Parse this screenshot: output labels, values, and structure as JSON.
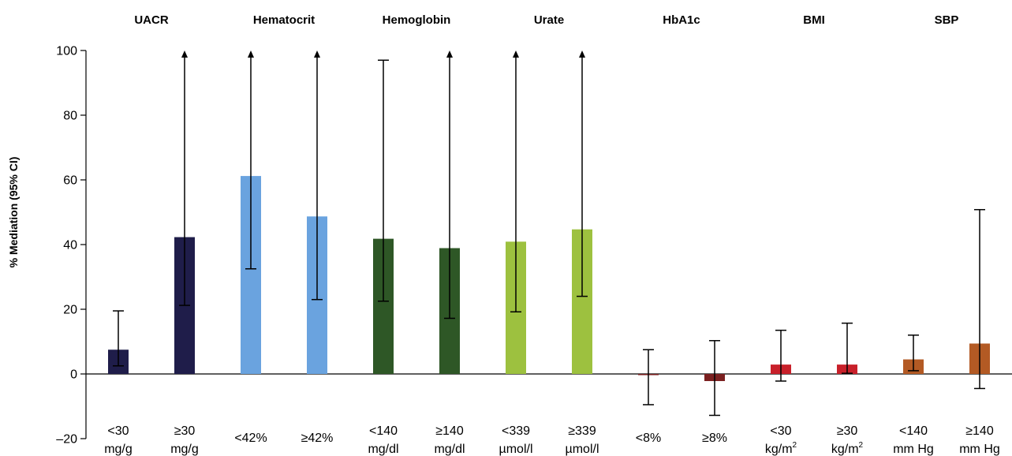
{
  "chart_data": {
    "type": "bar",
    "ylabel": "% Mediation (95% CI)",
    "ylim": [
      -20,
      100
    ],
    "yticks": [
      "100",
      "80",
      "60",
      "40",
      "20",
      "0",
      "–20"
    ],
    "grid": false,
    "groups": [
      {
        "name": "UACR",
        "bars": [
          {
            "label": [
              "<30",
              "mg/g"
            ],
            "value": 7.5,
            "ci_low": 2.5,
            "ci_high": 19.5,
            "ci_high_open": false,
            "color": "#1f1d4a"
          },
          {
            "label": [
              "≥30",
              "mg/g"
            ],
            "value": 42.3,
            "ci_low": 21.2,
            "ci_high": 100,
            "ci_high_open": true,
            "color": "#1f1d4a"
          }
        ]
      },
      {
        "name": "Hematocrit",
        "bars": [
          {
            "label": [
              "<42%"
            ],
            "value": 61.2,
            "ci_low": 32.5,
            "ci_high": 100,
            "ci_high_open": true,
            "color": "#6aa3df"
          },
          {
            "label": [
              "≥42%"
            ],
            "value": 48.7,
            "ci_low": 23.0,
            "ci_high": 100,
            "ci_high_open": true,
            "color": "#6aa3df"
          }
        ]
      },
      {
        "name": "Hemoglobin",
        "bars": [
          {
            "label": [
              "<140",
              "mg/dl"
            ],
            "value": 41.8,
            "ci_low": 22.5,
            "ci_high": 97.0,
            "ci_high_open": false,
            "color": "#2e5726"
          },
          {
            "label": [
              "≥140",
              "mg/dl"
            ],
            "value": 38.9,
            "ci_low": 17.2,
            "ci_high": 100,
            "ci_high_open": true,
            "color": "#2e5726"
          }
        ]
      },
      {
        "name": "Urate",
        "bars": [
          {
            "label": [
              "<339",
              "µmol/l"
            ],
            "value": 40.9,
            "ci_low": 19.2,
            "ci_high": 100,
            "ci_high_open": true,
            "color": "#9dc13f"
          },
          {
            "label": [
              "≥339",
              "µmol/l"
            ],
            "value": 44.7,
            "ci_low": 24.0,
            "ci_high": 100,
            "ci_high_open": true,
            "color": "#9dc13f"
          }
        ]
      },
      {
        "name": "HbA1c",
        "bars": [
          {
            "label": [
              "<8%"
            ],
            "value": -0.3,
            "ci_low": -9.5,
            "ci_high": 7.5,
            "ci_high_open": false,
            "color": "#7a1f1f"
          },
          {
            "label": [
              "≥8%"
            ],
            "value": -2.2,
            "ci_low": -12.8,
            "ci_high": 10.3,
            "ci_high_open": false,
            "color": "#7a1f1f"
          }
        ]
      },
      {
        "name": "BMI",
        "bars": [
          {
            "label": [
              "<30",
              "kg/m²"
            ],
            "value": 2.9,
            "ci_low": -2.2,
            "ci_high": 13.5,
            "ci_high_open": false,
            "color": "#c8202a"
          },
          {
            "label": [
              "≥30",
              "kg/m²"
            ],
            "value": 2.9,
            "ci_low": 0.2,
            "ci_high": 15.7,
            "ci_high_open": false,
            "color": "#c8202a"
          }
        ]
      },
      {
        "name": "SBP",
        "bars": [
          {
            "label": [
              "<140",
              "mm Hg"
            ],
            "value": 4.5,
            "ci_low": 1.0,
            "ci_high": 12.0,
            "ci_high_open": false,
            "color": "#b35a24"
          },
          {
            "label": [
              "≥140",
              "mm Hg"
            ],
            "value": 9.4,
            "ci_low": -4.5,
            "ci_high": 50.8,
            "ci_high_open": false,
            "color": "#b35a24"
          }
        ]
      }
    ]
  }
}
